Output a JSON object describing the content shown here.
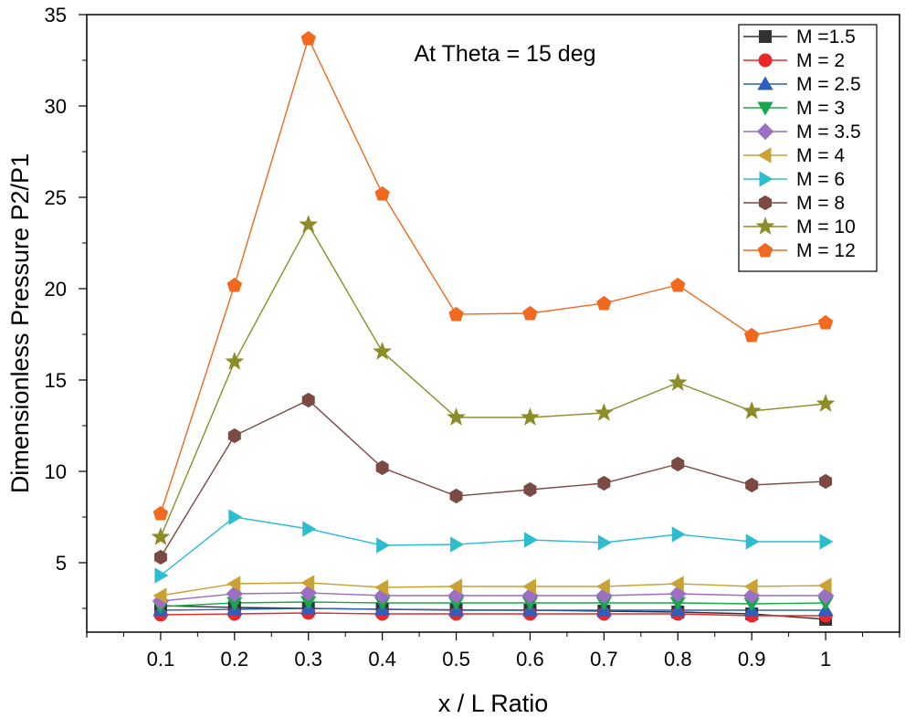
{
  "chart_data": {
    "type": "line",
    "annotation": "At Theta = 15 deg",
    "xlabel": "x / L Ratio",
    "ylabel": "Dimensionless Pressure P2/P1",
    "xlim": [
      0.0,
      1.1
    ],
    "ylim": [
      1.2,
      35
    ],
    "x": [
      0.1,
      0.2,
      0.3,
      0.4,
      0.5,
      0.6,
      0.7,
      0.8,
      0.9,
      1.0
    ],
    "x_tick_labels": [
      "0.1",
      "0.2",
      "0.3",
      "0.4",
      "0.5",
      "0.6",
      "0.7",
      "0.8",
      "0.9",
      "1"
    ],
    "y_ticks": [
      5,
      10,
      15,
      20,
      25,
      30,
      35
    ],
    "y_tick_labels": [
      "5",
      "10",
      "15",
      "20",
      "25",
      "30",
      "35"
    ],
    "grid": false,
    "legend_position": "top-right",
    "series": [
      {
        "name": "M =1.5",
        "color": "#333333",
        "marker": "square",
        "values": [
          2.65,
          2.55,
          2.5,
          2.45,
          2.42,
          2.4,
          2.35,
          2.3,
          2.2,
          1.9
        ]
      },
      {
        "name": "M = 2",
        "color": "#e8282a",
        "marker": "circle",
        "values": [
          2.15,
          2.2,
          2.25,
          2.2,
          2.2,
          2.2,
          2.2,
          2.2,
          2.1,
          2.1
        ]
      },
      {
        "name": "M = 2.5",
        "color": "#2d5fbe",
        "marker": "triangle-up",
        "values": [
          2.4,
          2.45,
          2.5,
          2.45,
          2.4,
          2.4,
          2.4,
          2.4,
          2.4,
          2.4
        ]
      },
      {
        "name": "M = 3",
        "color": "#18a84b",
        "marker": "triangle-down",
        "values": [
          2.6,
          2.8,
          2.85,
          2.8,
          2.8,
          2.8,
          2.8,
          2.8,
          2.75,
          2.8
        ]
      },
      {
        "name": "M = 3.5",
        "color": "#9b6fc4",
        "marker": "diamond",
        "values": [
          2.9,
          3.3,
          3.35,
          3.2,
          3.2,
          3.2,
          3.2,
          3.3,
          3.2,
          3.2
        ]
      },
      {
        "name": "M = 4",
        "color": "#c8a232",
        "marker": "triangle-left",
        "values": [
          3.2,
          3.85,
          3.9,
          3.65,
          3.7,
          3.7,
          3.7,
          3.85,
          3.7,
          3.75
        ]
      },
      {
        "name": "M = 6",
        "color": "#2dbdcf",
        "marker": "triangle-right",
        "values": [
          4.3,
          7.5,
          6.85,
          5.95,
          6.0,
          6.25,
          6.1,
          6.55,
          6.15,
          6.15
        ]
      },
      {
        "name": "M = 8",
        "color": "#7b4a42",
        "marker": "hexagon",
        "values": [
          5.3,
          11.95,
          13.9,
          10.2,
          8.65,
          9.0,
          9.35,
          10.4,
          9.25,
          9.45
        ]
      },
      {
        "name": "M = 10",
        "color": "#8c8c2a",
        "marker": "star",
        "values": [
          6.4,
          16.0,
          23.5,
          16.55,
          12.95,
          12.95,
          13.2,
          14.85,
          13.3,
          13.7
        ]
      },
      {
        "name": "M = 12",
        "color": "#f0691e",
        "marker": "pentagon",
        "values": [
          7.7,
          20.2,
          33.7,
          25.2,
          18.6,
          18.65,
          19.2,
          20.2,
          17.45,
          18.15
        ]
      }
    ]
  }
}
